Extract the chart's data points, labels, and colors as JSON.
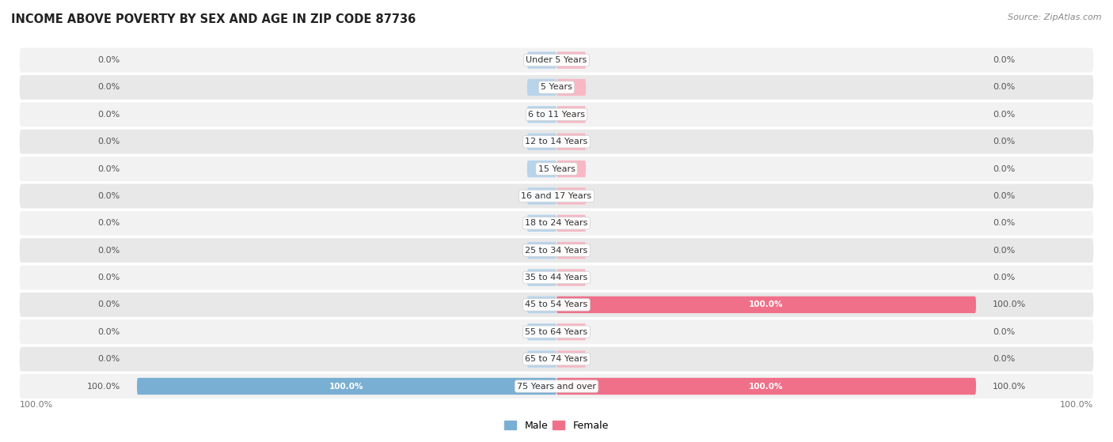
{
  "title": "INCOME ABOVE POVERTY BY SEX AND AGE IN ZIP CODE 87736",
  "source": "Source: ZipAtlas.com",
  "categories": [
    "Under 5 Years",
    "5 Years",
    "6 to 11 Years",
    "12 to 14 Years",
    "15 Years",
    "16 and 17 Years",
    "18 to 24 Years",
    "25 to 34 Years",
    "35 to 44 Years",
    "45 to 54 Years",
    "55 to 64 Years",
    "65 to 74 Years",
    "75 Years and over"
  ],
  "male_values": [
    0.0,
    0.0,
    0.0,
    0.0,
    0.0,
    0.0,
    0.0,
    0.0,
    0.0,
    0.0,
    0.0,
    0.0,
    100.0
  ],
  "female_values": [
    0.0,
    0.0,
    0.0,
    0.0,
    0.0,
    0.0,
    0.0,
    0.0,
    0.0,
    100.0,
    0.0,
    0.0,
    100.0
  ],
  "male_color": "#7aafd4",
  "female_color": "#f0708a",
  "male_color_stub": "#b8d4ea",
  "female_color_stub": "#f7b8c4",
  "row_bg_light": "#f2f2f2",
  "row_bg_dark": "#e8e8e8",
  "label_color": "#555555",
  "title_color": "#222222",
  "source_color": "#888888",
  "axis_label_color": "#777777",
  "max_value": 100.0,
  "stub_size": 7.0,
  "legend_male": "Male",
  "legend_female": "Female"
}
